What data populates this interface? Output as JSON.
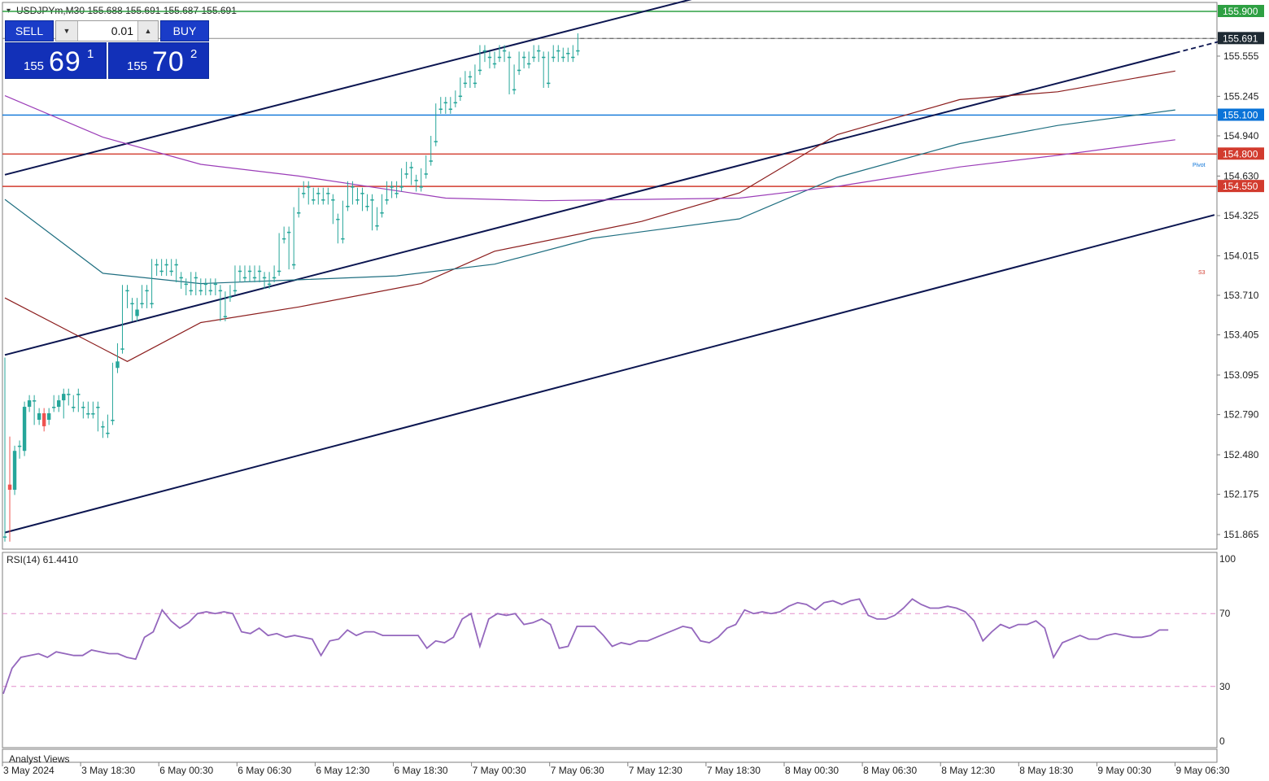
{
  "header": {
    "symbol_info": "USDJPYm,M30  155.688 155.691 155.687 155.691"
  },
  "trade_panel": {
    "sell_label": "SELL",
    "buy_label": "BUY",
    "lot_value": "0.01",
    "sell_price_small": "155",
    "sell_price_big": "69",
    "sell_price_sup": "1",
    "buy_price_small": "155",
    "buy_price_big": "70",
    "buy_price_sup": "2"
  },
  "rsi": {
    "label": "RSI(14) 61.4410"
  },
  "footer": {
    "analyst_views": "Analyst Views"
  },
  "pivot_labels": {
    "pivot": "Pivot",
    "s3": "S3"
  },
  "colors": {
    "bull": "#26a69a",
    "bear": "#ef5350",
    "green_level": "#2ea043",
    "blue_level": "#0a73d8",
    "red_level": "#d23b2e",
    "channel": "#0b1550",
    "ma_brown": "#8b1c1c",
    "ma_teal": "#1e6e80",
    "ma_purple": "#9b3db8",
    "rsi_line": "#9467bd",
    "rsi_level": "#e28ecb"
  },
  "chart_data": [
    {
      "type": "candlestick",
      "symbol": "USDJPYm",
      "timeframe": "M30",
      "ylim": [
        151.68,
        156.0
      ],
      "y_ticks": [
        "155.555",
        "155.245",
        "154.940",
        "154.630",
        "154.325",
        "154.015",
        "153.710",
        "153.405",
        "153.095",
        "152.790",
        "152.480",
        "152.175",
        "151.865"
      ],
      "x_ticks": [
        "3 May 2024",
        "3 May 18:30",
        "6 May 00:30",
        "6 May 06:30",
        "6 May 12:30",
        "6 May 18:30",
        "7 May 00:30",
        "7 May 06:30",
        "7 May 12:30",
        "7 May 18:30",
        "8 May 00:30",
        "8 May 06:30",
        "8 May 12:30",
        "8 May 18:30",
        "9 May 00:30",
        "9 May 06:30"
      ],
      "price_labels": [
        {
          "value": "155.900",
          "role": "green-level"
        },
        {
          "value": "155.691",
          "role": "current-price"
        },
        {
          "value": "155.100",
          "role": "blue-level"
        },
        {
          "value": "154.800",
          "role": "red-level"
        },
        {
          "value": "154.550",
          "role": "red-level"
        }
      ],
      "channel_lines": [
        {
          "name": "upper",
          "points": [
            [
              0,
              154.64
            ],
            [
              144,
              156.03
            ]
          ]
        },
        {
          "name": "middle",
          "points": [
            [
              0,
              153.25
            ],
            [
              239,
              155.58
            ]
          ]
        },
        {
          "name": "lower",
          "points": [
            [
              0,
              151.88
            ],
            [
              247,
              154.33
            ]
          ]
        }
      ],
      "moving_averages": [
        {
          "name": "MA-brown",
          "points": [
            [
              0,
              153.69
            ],
            [
              25,
              153.2
            ],
            [
              40,
              153.5
            ],
            [
              60,
              153.62
            ],
            [
              85,
              153.8
            ],
            [
              100,
              154.05
            ],
            [
              130,
              154.28
            ],
            [
              150,
              154.5
            ],
            [
              170,
              154.95
            ],
            [
              195,
              155.22
            ],
            [
              215,
              155.28
            ],
            [
              239,
              155.44
            ]
          ]
        },
        {
          "name": "MA-teal",
          "points": [
            [
              0,
              154.45
            ],
            [
              20,
              153.88
            ],
            [
              40,
              153.8
            ],
            [
              60,
              153.83
            ],
            [
              80,
              153.86
            ],
            [
              100,
              153.95
            ],
            [
              120,
              154.15
            ],
            [
              150,
              154.3
            ],
            [
              170,
              154.62
            ],
            [
              195,
              154.88
            ],
            [
              215,
              155.02
            ],
            [
              239,
              155.14
            ]
          ]
        },
        {
          "name": "MA-purple",
          "points": [
            [
              0,
              155.25
            ],
            [
              20,
              154.93
            ],
            [
              40,
              154.72
            ],
            [
              60,
              154.63
            ],
            [
              90,
              154.46
            ],
            [
              110,
              154.44
            ],
            [
              130,
              154.45
            ],
            [
              150,
              154.46
            ],
            [
              170,
              154.55
            ],
            [
              195,
              154.7
            ],
            [
              215,
              154.79
            ],
            [
              239,
              154.91
            ]
          ]
        }
      ],
      "candles": [
        [
          151.85,
          151.85,
          153.19,
          151.85
        ],
        [
          152.25,
          152.21,
          152.58,
          151.85
        ],
        [
          152.21,
          152.51,
          152.51,
          152.21
        ],
        [
          152.55,
          152.55,
          152.49,
          152.55
        ],
        [
          152.51,
          152.85,
          152.51,
          152.51
        ],
        [
          152.85,
          152.9,
          152.85,
          152.85
        ],
        [
          152.9,
          152.9,
          152.75,
          152.9
        ],
        [
          152.75,
          152.8,
          152.75,
          152.75
        ],
        [
          152.8,
          152.7,
          152.75,
          152.8
        ],
        [
          152.75,
          152.8,
          152.8,
          152.75
        ],
        [
          152.85,
          152.85,
          152.9,
          152.85
        ],
        [
          152.85,
          152.9,
          152.9,
          152.85
        ],
        [
          152.9,
          152.95,
          152.8,
          152.9
        ],
        [
          152.95,
          152.95,
          152.9,
          152.95
        ],
        [
          152.85,
          152.85,
          152.9,
          152.85
        ],
        [
          152.95,
          152.95,
          152.85,
          152.95
        ],
        [
          152.85,
          152.85,
          152.8,
          152.85
        ],
        [
          152.8,
          152.8,
          152.85,
          152.8
        ],
        [
          152.8,
          152.8,
          152.85,
          152.8
        ],
        [
          152.85,
          152.85,
          152.7,
          152.85
        ],
        [
          152.7,
          152.7,
          152.65,
          152.7
        ],
        [
          152.65,
          152.65,
          152.75,
          152.65
        ],
        [
          152.75,
          152.75,
          153.15,
          152.75
        ],
        [
          153.15,
          153.2,
          153.3,
          153.15
        ],
        [
          153.3,
          153.3,
          153.75,
          153.3
        ],
        [
          153.75,
          153.75,
          153.65,
          153.75
        ],
        [
          153.65,
          153.65,
          153.55,
          153.65
        ],
        [
          153.55,
          153.6,
          153.65,
          153.55
        ],
        [
          153.65,
          153.65,
          153.75,
          153.65
        ],
        [
          153.75,
          153.75,
          153.65,
          153.75
        ],
        [
          153.65,
          153.65,
          153.95,
          153.65
        ],
        [
          153.95,
          153.95,
          153.9,
          153.95
        ],
        [
          153.9,
          153.9,
          153.95,
          153.9
        ],
        [
          153.95,
          153.95,
          153.9,
          153.95
        ],
        [
          153.9,
          153.9,
          153.95,
          153.9
        ],
        [
          153.95,
          153.95,
          153.85,
          153.95
        ],
        [
          153.85,
          153.85,
          153.8,
          153.85
        ],
        [
          153.8,
          153.8,
          153.75,
          153.8
        ],
        [
          153.75,
          153.75,
          153.85,
          153.75
        ],
        [
          153.85,
          153.85,
          153.75,
          153.85
        ],
        [
          153.75,
          153.75,
          153.8,
          153.75
        ],
        [
          153.8,
          153.8,
          153.75,
          153.8
        ],
        [
          153.75,
          153.75,
          153.8,
          153.75
        ],
        [
          153.8,
          153.8,
          153.75,
          153.8
        ],
        [
          153.75,
          153.75,
          153.55,
          153.75
        ],
        [
          153.55,
          153.55,
          153.7,
          153.55
        ],
        [
          153.7,
          153.7,
          153.75,
          153.7
        ],
        [
          153.75,
          153.75,
          153.9,
          153.75
        ],
        [
          153.9,
          153.9,
          153.85,
          153.9
        ],
        [
          153.85,
          153.85,
          153.9,
          153.85
        ],
        [
          153.9,
          153.9,
          153.85,
          153.9
        ],
        [
          153.85,
          153.85,
          153.9,
          153.85
        ],
        [
          153.9,
          153.9,
          153.85,
          153.9
        ],
        [
          153.85,
          153.85,
          153.8,
          153.85
        ],
        [
          153.8,
          153.8,
          153.85,
          153.8
        ],
        [
          153.85,
          153.85,
          153.9,
          153.85
        ],
        [
          153.9,
          153.9,
          154.15,
          153.9
        ],
        [
          154.15,
          154.15,
          154.2,
          154.15
        ],
        [
          154.2,
          154.2,
          153.95,
          154.2
        ],
        [
          153.95,
          153.95,
          154.35,
          153.95
        ],
        [
          154.35,
          154.35,
          154.5,
          154.35
        ],
        [
          154.5,
          154.5,
          154.55,
          154.5
        ],
        [
          154.55,
          154.55,
          154.45,
          154.55
        ],
        [
          154.45,
          154.45,
          154.5,
          154.45
        ],
        [
          154.5,
          154.5,
          154.45,
          154.5
        ],
        [
          154.45,
          154.45,
          154.5,
          154.45
        ],
        [
          154.5,
          154.5,
          154.45,
          154.5
        ],
        [
          154.45,
          154.45,
          154.3,
          154.45
        ],
        [
          154.3,
          154.3,
          154.15,
          154.3
        ],
        [
          154.15,
          154.15,
          154.4,
          154.15
        ],
        [
          154.4,
          154.4,
          154.55,
          154.4
        ],
        [
          154.55,
          154.55,
          154.45,
          154.55
        ],
        [
          154.45,
          154.45,
          154.5,
          154.45
        ],
        [
          154.5,
          154.5,
          154.4,
          154.5
        ],
        [
          154.4,
          154.4,
          154.45,
          154.4
        ],
        [
          154.45,
          154.45,
          154.25,
          154.45
        ],
        [
          154.25,
          154.25,
          154.35,
          154.25
        ],
        [
          154.35,
          154.35,
          154.45,
          154.35
        ],
        [
          154.45,
          154.45,
          154.55,
          154.45
        ],
        [
          154.55,
          154.55,
          154.5,
          154.55
        ],
        [
          154.5,
          154.5,
          154.55,
          154.5
        ],
        [
          154.55,
          154.55,
          154.65,
          154.55
        ],
        [
          154.65,
          154.65,
          154.7,
          154.65
        ],
        [
          154.7,
          154.7,
          154.6,
          154.7
        ],
        [
          154.6,
          154.6,
          154.55,
          154.6
        ],
        [
          154.55,
          154.55,
          154.65,
          154.55
        ],
        [
          154.65,
          154.65,
          154.75,
          154.65
        ],
        [
          154.75,
          154.75,
          154.9,
          154.75
        ],
        [
          154.9,
          154.9,
          155.15,
          154.9
        ],
        [
          155.15,
          155.15,
          155.2,
          155.15
        ],
        [
          155.2,
          155.2,
          155.15,
          155.2
        ],
        [
          155.15,
          155.15,
          155.2,
          155.15
        ],
        [
          155.2,
          155.2,
          155.25,
          155.2
        ],
        [
          155.25,
          155.25,
          155.35,
          155.25
        ],
        [
          155.35,
          155.35,
          155.4,
          155.35
        ],
        [
          155.4,
          155.4,
          155.35,
          155.4
        ],
        [
          155.35,
          155.35,
          155.45,
          155.35
        ],
        [
          155.45,
          155.45,
          155.6,
          155.45
        ],
        [
          155.6,
          155.6,
          155.55,
          155.6
        ],
        [
          155.55,
          155.55,
          155.5,
          155.55
        ],
        [
          155.5,
          155.5,
          155.55,
          155.5
        ],
        [
          155.55,
          155.55,
          155.6,
          155.55
        ],
        [
          155.6,
          155.6,
          155.55,
          155.6
        ],
        [
          155.55,
          155.55,
          155.3,
          155.55
        ],
        [
          155.3,
          155.3,
          155.45,
          155.3
        ],
        [
          155.45,
          155.45,
          155.55,
          155.45
        ],
        [
          155.55,
          155.55,
          155.5,
          155.55
        ],
        [
          155.5,
          155.5,
          155.55,
          155.5
        ],
        [
          155.55,
          155.55,
          155.6,
          155.55
        ],
        [
          155.6,
          155.6,
          155.55,
          155.6
        ],
        [
          155.55,
          155.55,
          155.35,
          155.55
        ],
        [
          155.35,
          155.35,
          155.55,
          155.35
        ],
        [
          155.55,
          155.55,
          155.6,
          155.55
        ],
        [
          155.6,
          155.6,
          155.55,
          155.6
        ],
        [
          155.55,
          155.55,
          155.58,
          155.55
        ],
        [
          155.58,
          155.58,
          155.55,
          155.58
        ],
        [
          155.55,
          155.55,
          155.6,
          155.55
        ],
        [
          155.6,
          155.6,
          155.691,
          155.6
        ]
      ]
    },
    {
      "type": "line",
      "indicator": "RSI(14)",
      "current_value": 61.441,
      "ylim": [
        0,
        100
      ],
      "levels": [
        30,
        70
      ],
      "y_ticks": [
        "100",
        "70",
        "30",
        "0"
      ],
      "values": [
        26,
        40,
        46,
        47,
        48,
        46,
        49,
        48,
        47,
        47,
        50,
        49,
        48,
        48,
        46,
        45,
        57,
        60,
        72,
        66,
        62,
        65,
        70,
        71,
        70,
        71,
        70,
        60,
        59,
        62,
        58,
        59,
        57,
        58,
        57,
        56,
        47,
        55,
        56,
        61,
        58,
        60,
        60,
        58,
        58,
        58,
        58,
        58,
        51,
        55,
        54,
        57,
        67,
        70,
        52,
        67,
        70,
        69,
        70,
        64,
        65,
        67,
        64,
        51,
        52,
        63,
        63,
        63,
        58,
        52,
        54,
        53,
        55,
        55,
        57,
        59,
        61,
        63,
        62,
        55,
        54,
        57,
        62,
        64,
        72,
        70,
        71,
        70,
        71,
        74,
        76,
        75,
        72,
        76,
        77,
        75,
        77,
        78,
        69,
        67,
        67,
        69,
        73,
        78,
        75,
        73,
        73,
        74,
        73,
        71,
        66,
        55,
        60,
        64,
        62,
        64,
        64,
        66,
        62,
        46,
        54,
        56,
        58,
        56,
        56,
        58,
        59,
        58,
        57,
        57,
        58,
        61,
        61
      ]
    }
  ]
}
